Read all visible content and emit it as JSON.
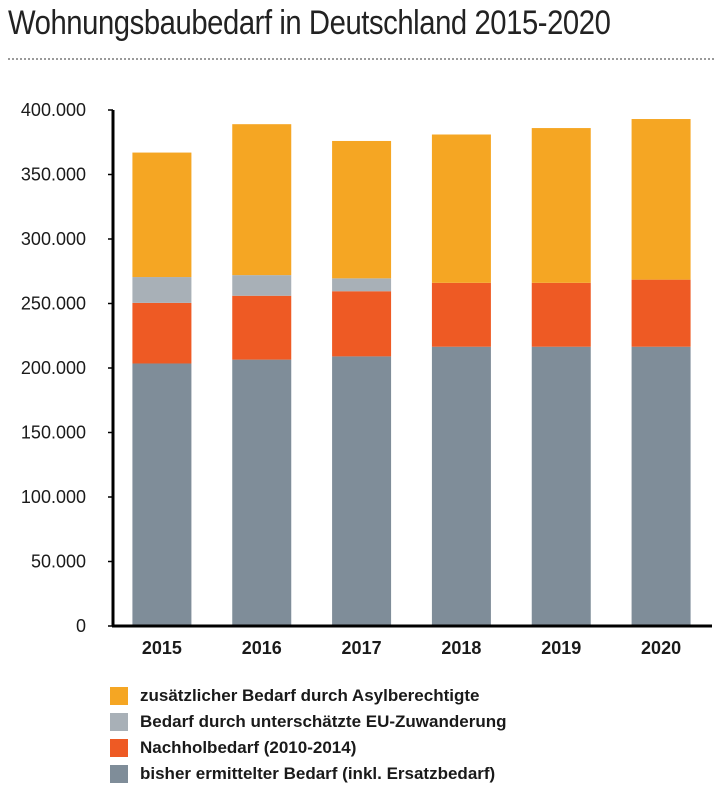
{
  "title": "Wohnungsbaubedarf in Deutschland 2015-2020",
  "colors": {
    "asyl": "#f5a623",
    "eu": "#a8b0b7",
    "nachhol": "#ee5a24",
    "bisher": "#7f8d99",
    "axis": "#000000"
  },
  "chart_data": {
    "type": "bar",
    "stacked": true,
    "categories": [
      "2015",
      "2016",
      "2017",
      "2018",
      "2019",
      "2020"
    ],
    "series": [
      {
        "name": "bisher ermittelter Bedarf (inkl. Ersatzbedarf)",
        "color_key": "bisher",
        "values": [
          203500,
          206500,
          209000,
          216500,
          216500,
          216500
        ]
      },
      {
        "name": "Nachholbedarf (2010-2014)",
        "color_key": "nachhol",
        "values": [
          47000,
          49500,
          50500,
          49500,
          49500,
          52000
        ]
      },
      {
        "name": "Bedarf durch unterschätzte EU-Zuwanderung",
        "color_key": "eu",
        "values": [
          20000,
          16000,
          10000,
          0,
          0,
          0
        ]
      },
      {
        "name": "zusätzlicher Bedarf durch Asylberechtigte",
        "color_key": "asyl",
        "values": [
          96500,
          117000,
          106500,
          115000,
          120000,
          124500
        ]
      }
    ],
    "ylim": [
      0,
      400000
    ],
    "y_ticks": [
      0,
      50000,
      100000,
      150000,
      200000,
      250000,
      300000,
      350000,
      400000
    ],
    "y_tick_labels": [
      "0",
      "50.000",
      "100.000",
      "150.000",
      "200.000",
      "250.000",
      "300.000",
      "350.000",
      "400.000"
    ],
    "grid": false,
    "legend_position": "bottom"
  },
  "legend": [
    {
      "label": "zusätzlicher Bedarf durch Asylberechtigte",
      "color_key": "asyl"
    },
    {
      "label": "Bedarf durch unterschätzte EU-Zuwanderung",
      "color_key": "eu"
    },
    {
      "label": "Nachholbedarf (2010-2014)",
      "color_key": "nachhol"
    },
    {
      "label": "bisher ermittelter Bedarf (inkl. Ersatzbedarf)",
      "color_key": "bisher"
    }
  ]
}
